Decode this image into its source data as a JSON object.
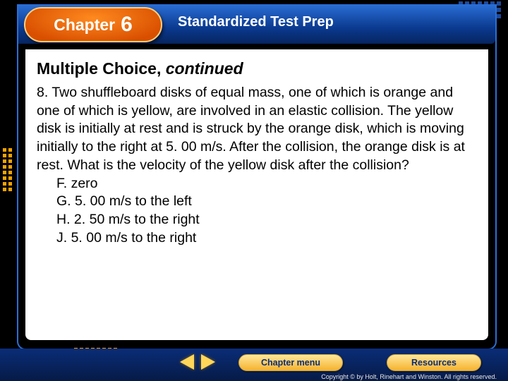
{
  "colors": {
    "header_gradient_top": "#2a6fd6",
    "header_gradient_bottom": "#062560",
    "chapter_pill_outer": "#ff8a1f",
    "chapter_pill_inner": "#d94f00",
    "frame_border": "#2a6fd6",
    "button_gradient_top": "#ffe79a",
    "button_gradient_bottom": "#f6b22e",
    "button_text": "#0a2d78",
    "arrow_fill": "#ffd65a",
    "background": "#000000",
    "content_background": "#ffffff",
    "decor_blue": "#1d4a9e",
    "decor_orange": "#f5a300"
  },
  "typography": {
    "title_fontsize": 23,
    "body_fontsize": 19.5,
    "header_fontsize": 20,
    "chapter_label_fontsize": 23,
    "chapter_number_fontsize": 30,
    "button_fontsize": 12.5,
    "copyright_fontsize": 9,
    "font_family": "Arial"
  },
  "header": {
    "chapter_label": "Chapter",
    "chapter_number": "6",
    "title": "Standardized Test Prep"
  },
  "section": {
    "title": "Multiple Choice,",
    "continued": "continued"
  },
  "question": {
    "number": "8.",
    "text": "Two shuffleboard disks of equal mass, one of which is orange and one of which is yellow, are involved in an elastic collision. The yellow disk is initially at rest and is struck by the orange disk, which is moving initially to the right at 5. 00 m/s. After the collision, the orange disk is at rest. What is the velocity of the yellow disk after the collision?",
    "choices": {
      "F": "F. zero",
      "G": "G. 5. 00 m/s to the left",
      "H": "H. 2. 50 m/s to the right",
      "J": "J. 5. 00 m/s to the right"
    }
  },
  "nav": {
    "chapter_menu": "Chapter menu",
    "resources": "Resources"
  },
  "footer": {
    "copyright": "Copyright © by Holt, Rinehart and Winston. All rights reserved."
  }
}
